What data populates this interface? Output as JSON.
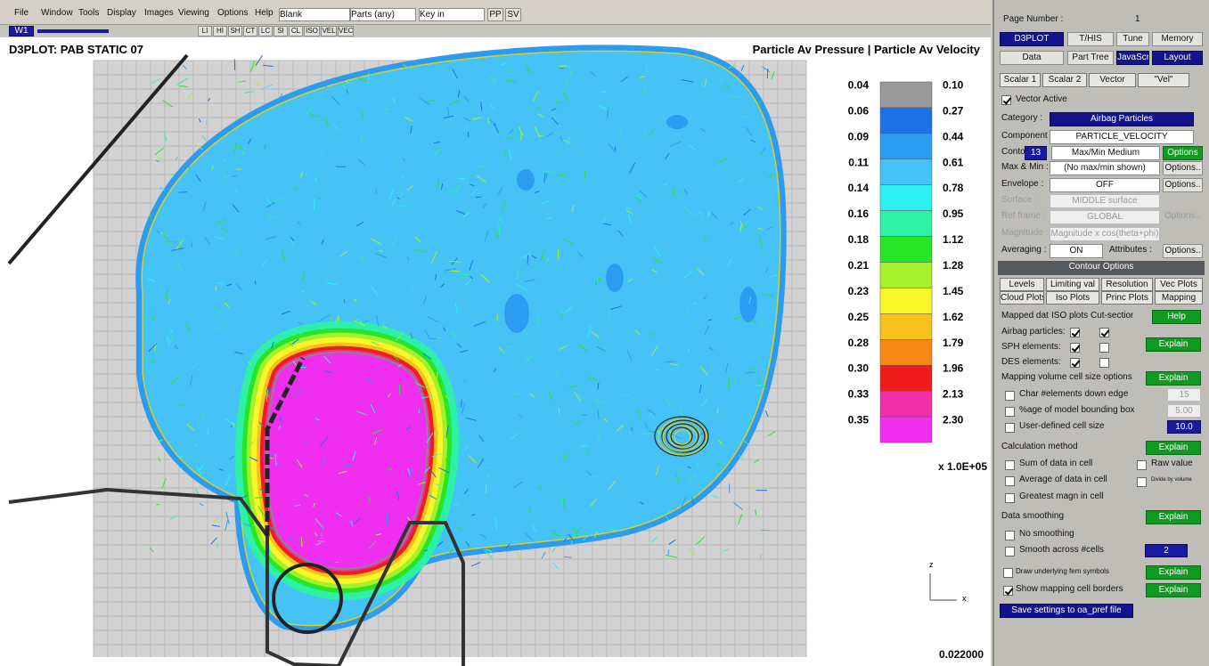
{
  "menu": {
    "items": [
      "File",
      "Window",
      "Tools",
      "Display",
      "Images",
      "Viewing",
      "Options",
      "Help"
    ],
    "fields": [
      "Blank",
      "Parts (any)",
      "Key in"
    ],
    "buttons": [
      "PP",
      "SV"
    ]
  },
  "toolbar": {
    "window": "W1",
    "buttons": [
      "LI",
      "HI",
      "SH",
      "CT",
      "LC",
      "SI",
      "CL",
      "ISO",
      "VEL",
      "VEC"
    ]
  },
  "viewport": {
    "title": "D3PLOT: PAB STATIC 07",
    "plot_title": "Particle Av Pressure | Particle Av Velocity",
    "legend": {
      "left": [
        "0.04",
        "0.06",
        "0.09",
        "0.11",
        "0.14",
        "0.16",
        "0.18",
        "0.21",
        "0.23",
        "0.25",
        "0.28",
        "0.30",
        "0.33",
        "0.35"
      ],
      "right": [
        "0.10",
        "0.27",
        "0.44",
        "0.61",
        "0.78",
        "0.95",
        "1.12",
        "1.28",
        "1.45",
        "1.62",
        "1.79",
        "1.96",
        "2.13",
        "2.30"
      ],
      "colors": [
        "#9a9a9a",
        "#1f72e6",
        "#2c9cf2",
        "#45c3f7",
        "#2ff0f0",
        "#2ef0a8",
        "#27e627",
        "#a5f02a",
        "#f7f72a",
        "#f7c21c",
        "#f78a14",
        "#f01c1c",
        "#f02ea8",
        "#f02ef0"
      ],
      "multiplier": "x 1.0E+05"
    },
    "axis": {
      "z": "z",
      "x": "x"
    },
    "time": "0.022000"
  },
  "panel": {
    "page_label": "Page Number :",
    "page": "1",
    "top": [
      "D3PLOT",
      "T/HIS",
      "Tune",
      "Memory"
    ],
    "second": [
      "Data",
      "Part Tree",
      "JavaScript",
      "Layout"
    ],
    "tabs": [
      "Scalar 1",
      "Scalar 2",
      "Vector",
      "\"Vel\""
    ],
    "vector_active": "Vector Active",
    "category": [
      "Category :",
      "Airbag Particles"
    ],
    "component": [
      "Component :",
      "PARTICLE_VELOCITY"
    ],
    "contours": [
      "Contours :",
      "13",
      "Max/Min Medium",
      "Options"
    ],
    "maxmin": [
      "Max & Min :",
      "(No max/min shown)",
      "Options.."
    ],
    "envelope": [
      "Envelope :",
      "OFF",
      "Options.."
    ],
    "surface": [
      "Surface :",
      "MIDDLE surface"
    ],
    "ref_frame": [
      "Ref frame :",
      "GLOBAL",
      "Options.."
    ],
    "magnitude": [
      "Magnitude :",
      "Magnitude x cos(theta+phi)"
    ],
    "averaging": [
      "Averaging :",
      "ON",
      "Attributes :",
      "Options.."
    ],
    "contour_options": "Contour Options",
    "option_tabs": [
      "Levels",
      "Limiting val",
      "Resolution",
      "Vec Plots",
      "Cloud Plots",
      "Iso Plots",
      "Princ Plots",
      "Mapping"
    ],
    "mapped": [
      "Mapped data",
      "ISO plots",
      "Cut-sections",
      "Help"
    ],
    "mapped_rows": [
      "Airbag particles:",
      "SPH elements:",
      "DES elements:"
    ],
    "mapped_explain": "Explain",
    "cell_size": [
      "Mapping volume cell size options",
      "Explain"
    ],
    "char_elements": [
      "Char #elements down edge",
      "15"
    ],
    "bounding_box": [
      "%age of model bounding box",
      "5.00"
    ],
    "user_cell": [
      "User-defined cell size",
      "10.0"
    ],
    "calc": [
      "Calculation method",
      "Explain"
    ],
    "calc_rows": [
      "Sum of data in cell",
      "Average of data in cell",
      "Greatest magn in cell"
    ],
    "raw": [
      "Raw value",
      "Divide by volume"
    ],
    "smoothing": [
      "Data smoothing",
      "Explain"
    ],
    "no_smoothing": "No smoothing",
    "smooth_cells": [
      "Smooth across #cells",
      "2"
    ],
    "fem": [
      "Draw underlying fem symbols",
      "Explain"
    ],
    "borders": [
      "Show mapping cell borders",
      "Explain"
    ],
    "save": "Save settings to oa_pref file"
  }
}
